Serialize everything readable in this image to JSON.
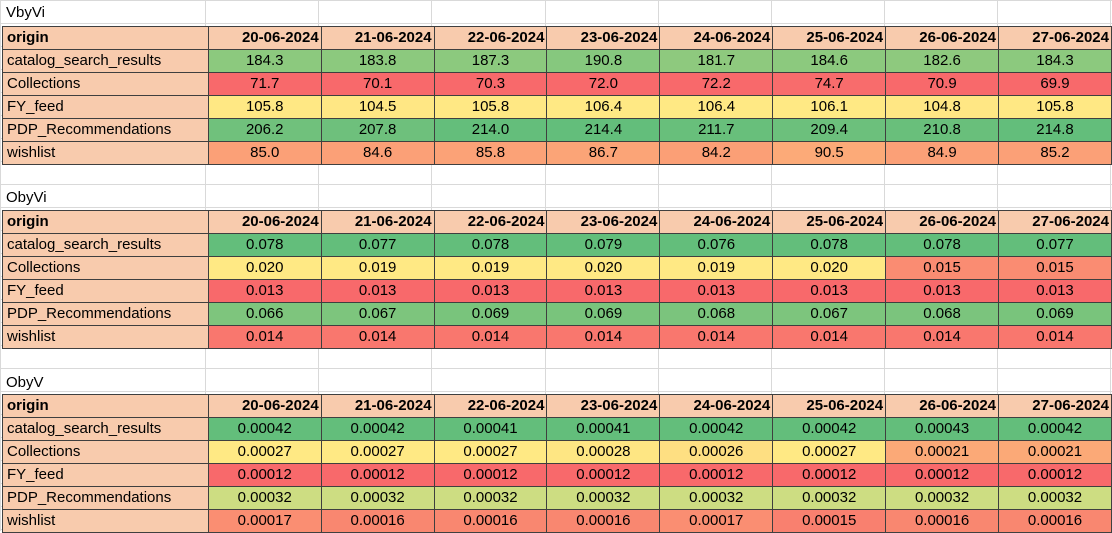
{
  "sections": [
    {
      "title": "VbyVi",
      "header": [
        "origin",
        "20-06-2024",
        "21-06-2024",
        "22-06-2024",
        "23-06-2024",
        "24-06-2024",
        "25-06-2024",
        "26-06-2024",
        "27-06-2024"
      ],
      "rows": [
        {
          "name": "catalog_search_results",
          "values": [
            "184.3",
            "183.8",
            "187.3",
            "190.8",
            "181.7",
            "184.6",
            "182.6",
            "184.3"
          ],
          "colors": [
            "#8cc97e",
            "#8cc97e",
            "#8cc97e",
            "#86c87e",
            "#8ec97e",
            "#8cc97e",
            "#8ec97e",
            "#8cc97e"
          ]
        },
        {
          "name": "Collections",
          "values": [
            "71.7",
            "70.1",
            "70.3",
            "72.0",
            "72.2",
            "74.7",
            "70.9",
            "69.9"
          ],
          "colors": [
            "#f8696b",
            "#f8696b",
            "#f8696b",
            "#f8696b",
            "#f8696b",
            "#f86c6c",
            "#f8696b",
            "#f8696b"
          ]
        },
        {
          "name": "FY_feed",
          "values": [
            "105.8",
            "104.5",
            "105.8",
            "106.4",
            "106.4",
            "106.1",
            "104.8",
            "105.8"
          ],
          "colors": [
            "#ffe884",
            "#ffe784",
            "#ffe884",
            "#ffe984",
            "#ffe984",
            "#ffe984",
            "#ffe784",
            "#ffe884"
          ]
        },
        {
          "name": "PDP_Recommendations",
          "values": [
            "206.2",
            "207.8",
            "214.0",
            "214.4",
            "211.7",
            "209.4",
            "210.8",
            "214.8"
          ],
          "colors": [
            "#70c17c",
            "#6ec07c",
            "#64be7b",
            "#63be7b",
            "#68bf7b",
            "#6cc07c",
            "#69bf7b",
            "#63be7b"
          ]
        },
        {
          "name": "wishlist",
          "values": [
            "85.0",
            "84.6",
            "85.8",
            "86.7",
            "84.2",
            "90.5",
            "84.9",
            "85.2"
          ],
          "colors": [
            "#fba077",
            "#fba077",
            "#fba277",
            "#fba477",
            "#fb9f76",
            "#fcaa78",
            "#fba077",
            "#fba077"
          ]
        }
      ]
    },
    {
      "title": "ObyVi",
      "header": [
        "origin",
        "20-06-2024",
        "21-06-2024",
        "22-06-2024",
        "23-06-2024",
        "24-06-2024",
        "25-06-2024",
        "26-06-2024",
        "27-06-2024"
      ],
      "rows": [
        {
          "name": "catalog_search_results",
          "values": [
            "0.078",
            "0.077",
            "0.078",
            "0.079",
            "0.076",
            "0.078",
            "0.078",
            "0.077"
          ],
          "colors": [
            "#63be7b",
            "#63be7b",
            "#63be7b",
            "#63be7b",
            "#63be7b",
            "#63be7b",
            "#63be7b",
            "#63be7b"
          ]
        },
        {
          "name": "Collections",
          "values": [
            "0.020",
            "0.019",
            "0.019",
            "0.020",
            "0.019",
            "0.020",
            "0.015",
            "0.015"
          ],
          "colors": [
            "#ffe984",
            "#ffe984",
            "#ffe984",
            "#ffe984",
            "#ffe984",
            "#ffe984",
            "#fa8c72",
            "#fa8c72"
          ]
        },
        {
          "name": "FY_feed",
          "values": [
            "0.013",
            "0.013",
            "0.013",
            "0.013",
            "0.013",
            "0.013",
            "0.013",
            "0.013"
          ],
          "colors": [
            "#f8696b",
            "#f8696b",
            "#f8696b",
            "#f8696b",
            "#f8696b",
            "#f8696b",
            "#f8696b",
            "#f8696b"
          ]
        },
        {
          "name": "PDP_Recommendations",
          "values": [
            "0.066",
            "0.067",
            "0.069",
            "0.069",
            "0.068",
            "0.067",
            "0.068",
            "0.069"
          ],
          "colors": [
            "#7ec57d",
            "#7dc57d",
            "#79c47c",
            "#79c47c",
            "#7bc47d",
            "#7dc57d",
            "#7bc47d",
            "#79c47c"
          ]
        },
        {
          "name": "wishlist",
          "values": [
            "0.014",
            "0.014",
            "0.014",
            "0.014",
            "0.014",
            "0.014",
            "0.014",
            "0.014"
          ],
          "colors": [
            "#f9776e",
            "#f9776e",
            "#f9776e",
            "#f9776e",
            "#f9776e",
            "#f9776e",
            "#f9776e",
            "#f9776e"
          ]
        }
      ]
    },
    {
      "title": "ObyV",
      "header": [
        "origin",
        "20-06-2024",
        "21-06-2024",
        "22-06-2024",
        "23-06-2024",
        "24-06-2024",
        "25-06-2024",
        "26-06-2024",
        "27-06-2024"
      ],
      "rows": [
        {
          "name": "catalog_search_results",
          "values": [
            "0.00042",
            "0.00042",
            "0.00041",
            "0.00041",
            "0.00042",
            "0.00042",
            "0.00043",
            "0.00042"
          ],
          "colors": [
            "#63be7b",
            "#63be7b",
            "#63be7b",
            "#63be7b",
            "#63be7b",
            "#63be7b",
            "#63be7b",
            "#63be7b"
          ]
        },
        {
          "name": "Collections",
          "values": [
            "0.00027",
            "0.00027",
            "0.00027",
            "0.00028",
            "0.00026",
            "0.00027",
            "0.00021",
            "0.00021"
          ],
          "colors": [
            "#ffe984",
            "#ffe984",
            "#ffe984",
            "#fee683",
            "#fedf82",
            "#ffe984",
            "#fba977",
            "#fba977"
          ]
        },
        {
          "name": "FY_feed",
          "values": [
            "0.00012",
            "0.00012",
            "0.00012",
            "0.00012",
            "0.00012",
            "0.00012",
            "0.00012",
            "0.00012"
          ],
          "colors": [
            "#f8696b",
            "#f8696b",
            "#f8696b",
            "#f8696b",
            "#f8696b",
            "#f8696b",
            "#f8696b",
            "#f8696b"
          ]
        },
        {
          "name": "PDP_Recommendations",
          "values": [
            "0.00032",
            "0.00032",
            "0.00032",
            "0.00032",
            "0.00032",
            "0.00032",
            "0.00032",
            "0.00032"
          ],
          "colors": [
            "#cddd82",
            "#cddd82",
            "#cddd82",
            "#cddd82",
            "#cddd82",
            "#cddd82",
            "#cddd82",
            "#cddd82"
          ]
        },
        {
          "name": "wishlist",
          "values": [
            "0.00017",
            "0.00016",
            "0.00016",
            "0.00016",
            "0.00017",
            "0.00015",
            "0.00016",
            "0.00016"
          ],
          "colors": [
            "#fa8e72",
            "#f98770",
            "#f98770",
            "#f98770",
            "#fa8e72",
            "#f9806f",
            "#f98770",
            "#f98770"
          ]
        }
      ]
    }
  ]
}
